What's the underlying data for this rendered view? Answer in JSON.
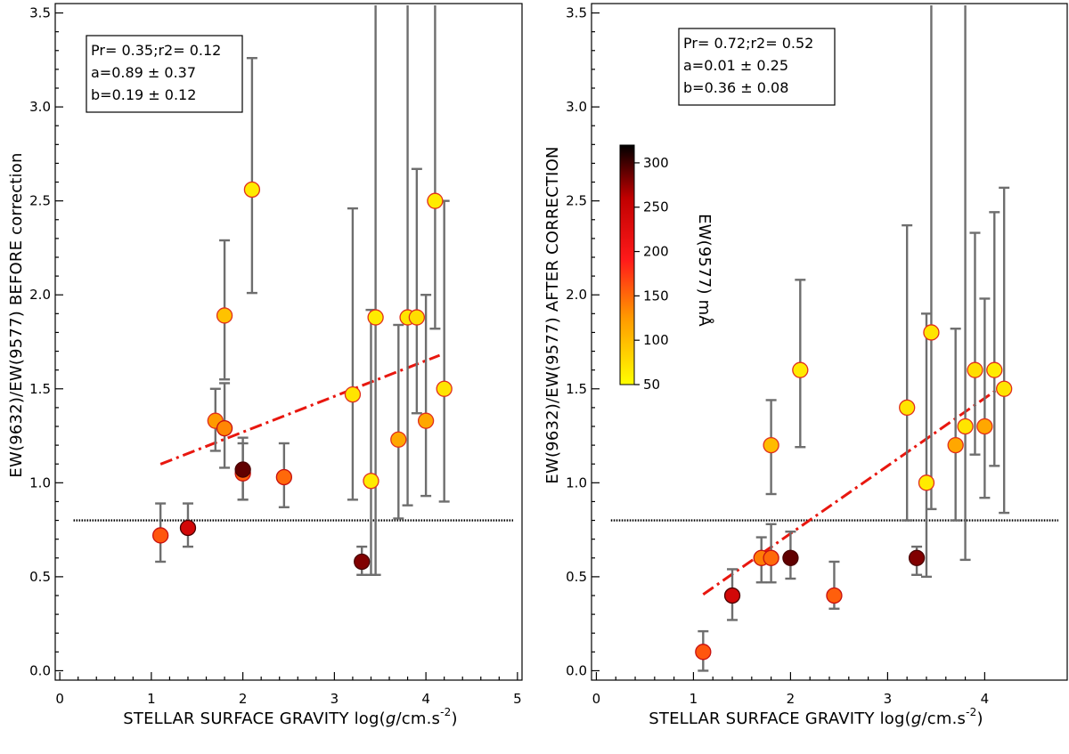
{
  "chart_data": [
    {
      "id": "left",
      "type": "scatter",
      "xlabel_prefix": "STELLAR SURFACE GRAVITY log(",
      "xlabel_italic": "g",
      "xlabel_suffix": "/cm.s",
      "xlabel_sup": "-2",
      "xlabel_close": ")",
      "ylabel": "EW(9632)/EW(9577) BEFORE correction",
      "xlim": [
        -0.05,
        5.05
      ],
      "ylim": [
        -0.05,
        3.55
      ],
      "xticks": [
        0,
        1,
        2,
        3,
        4,
        5
      ],
      "xtick_labels": [
        "0",
        "1",
        "2",
        "3",
        "4",
        "5"
      ],
      "yticks": [
        0.0,
        0.5,
        1.0,
        1.5,
        2.0,
        2.5,
        3.0,
        3.5
      ],
      "ytick_labels": [
        "0.0",
        "0.5",
        "1.0",
        "1.5",
        "2.0",
        "2.5",
        "3.0",
        "3.5"
      ],
      "stats": [
        "Pr= 0.35;r2= 0.12",
        "a=0.89 ± 0.37",
        "b=0.19 ± 0.12"
      ],
      "fit_line": {
        "a": 0.89,
        "b": 0.19,
        "x_range": [
          1.1,
          4.15
        ]
      },
      "reference_y": 0.8,
      "points": [
        {
          "x": 1.1,
          "y": 0.72,
          "lo": 0.58,
          "hi": 0.89,
          "ew": 160
        },
        {
          "x": 1.4,
          "y": 0.76,
          "lo": 0.66,
          "hi": 0.89,
          "ew": 240
        },
        {
          "x": 1.7,
          "y": 1.33,
          "lo": 1.17,
          "hi": 1.5,
          "ew": 125
        },
        {
          "x": 1.8,
          "y": 1.29,
          "lo": 1.08,
          "hi": 1.53,
          "ew": 135
        },
        {
          "x": 1.8,
          "y": 1.89,
          "lo": 1.55,
          "hi": 2.29,
          "ew": 95
        },
        {
          "x": 2.0,
          "y": 1.05,
          "lo": 0.91,
          "hi": 1.21,
          "ew": 155
        },
        {
          "x": 2.0,
          "y": 1.07,
          "lo": 0.91,
          "hi": 1.24,
          "ew": 290
        },
        {
          "x": 2.1,
          "y": 2.56,
          "lo": 2.01,
          "hi": 3.26,
          "ew": 65
        },
        {
          "x": 2.45,
          "y": 1.03,
          "lo": 0.87,
          "hi": 1.21,
          "ew": 150
        },
        {
          "x": 3.2,
          "y": 1.47,
          "lo": 0.91,
          "hi": 2.46,
          "ew": 70
        },
        {
          "x": 3.3,
          "y": 0.58,
          "lo": 0.51,
          "hi": 0.66,
          "ew": 280
        },
        {
          "x": 3.4,
          "y": 1.01,
          "lo": 0.51,
          "hi": 1.92,
          "ew": 65
        },
        {
          "x": 3.45,
          "y": 1.88,
          "lo": 0.51,
          "hi": 3.55,
          "ew": 65
        },
        {
          "x": 3.7,
          "y": 1.23,
          "lo": 0.81,
          "hi": 1.84,
          "ew": 115
        },
        {
          "x": 3.8,
          "y": 1.88,
          "lo": 0.88,
          "hi": 3.55,
          "ew": 70
        },
        {
          "x": 3.9,
          "y": 1.88,
          "lo": 1.37,
          "hi": 2.67,
          "ew": 75
        },
        {
          "x": 4.0,
          "y": 1.33,
          "lo": 0.93,
          "hi": 2.0,
          "ew": 115
        },
        {
          "x": 4.1,
          "y": 2.5,
          "lo": 1.82,
          "hi": 3.55,
          "ew": 65
        },
        {
          "x": 4.2,
          "y": 1.5,
          "lo": 0.9,
          "hi": 2.5,
          "ew": 70
        }
      ]
    },
    {
      "id": "right",
      "type": "scatter",
      "xlabel_prefix": "STELLAR SURFACE GRAVITY log(",
      "xlabel_italic": "g",
      "xlabel_suffix": "/cm.s",
      "xlabel_sup": "-2",
      "xlabel_close": ")",
      "ylabel": "EW(9632)/EW(9577) AFTER CORRECTION",
      "xlim": [
        -0.05,
        4.85
      ],
      "ylim": [
        -0.05,
        3.55
      ],
      "xticks": [
        0,
        1,
        2,
        3,
        4
      ],
      "xtick_labels": [
        "0",
        "1",
        "2",
        "3",
        "4"
      ],
      "yticks": [
        0.0,
        0.5,
        1.0,
        1.5,
        2.0,
        2.5,
        3.0,
        3.5
      ],
      "ytick_labels": [
        "0.0",
        "0.5",
        "1.0",
        "1.5",
        "2.0",
        "2.5",
        "3.0",
        "3.5"
      ],
      "stats": [
        "Pr= 0.72;r2= 0.52",
        "a=0.01 ± 0.25",
        "b=0.36 ± 0.08"
      ],
      "fit_line": {
        "a": 0.01,
        "b": 0.36,
        "x_range": [
          1.1,
          4.15
        ]
      },
      "reference_y": 0.8,
      "points": [
        {
          "x": 1.1,
          "y": 0.1,
          "lo": 0.0,
          "hi": 0.21,
          "ew": 160
        },
        {
          "x": 1.4,
          "y": 0.4,
          "lo": 0.27,
          "hi": 0.54,
          "ew": 240
        },
        {
          "x": 1.7,
          "y": 0.6,
          "lo": 0.47,
          "hi": 0.71,
          "ew": 140
        },
        {
          "x": 1.8,
          "y": 0.6,
          "lo": 0.47,
          "hi": 0.78,
          "ew": 150
        },
        {
          "x": 1.8,
          "y": 1.2,
          "lo": 0.94,
          "hi": 1.44,
          "ew": 100
        },
        {
          "x": 2.0,
          "y": 0.6,
          "lo": 0.49,
          "hi": 0.74,
          "ew": 290
        },
        {
          "x": 2.1,
          "y": 1.6,
          "lo": 1.19,
          "hi": 2.08,
          "ew": 65
        },
        {
          "x": 2.45,
          "y": 0.4,
          "lo": 0.33,
          "hi": 0.58,
          "ew": 155
        },
        {
          "x": 3.2,
          "y": 1.4,
          "lo": 0.8,
          "hi": 2.37,
          "ew": 70
        },
        {
          "x": 3.3,
          "y": 0.6,
          "lo": 0.51,
          "hi": 0.66,
          "ew": 280
        },
        {
          "x": 3.4,
          "y": 1.0,
          "lo": 0.5,
          "hi": 1.9,
          "ew": 65
        },
        {
          "x": 3.45,
          "y": 1.8,
          "lo": 0.86,
          "hi": 3.55,
          "ew": 70
        },
        {
          "x": 3.7,
          "y": 1.2,
          "lo": 0.8,
          "hi": 1.82,
          "ew": 115
        },
        {
          "x": 3.8,
          "y": 1.3,
          "lo": 0.59,
          "hi": 3.55,
          "ew": 70
        },
        {
          "x": 3.9,
          "y": 1.6,
          "lo": 1.15,
          "hi": 2.33,
          "ew": 75
        },
        {
          "x": 4.0,
          "y": 1.3,
          "lo": 0.92,
          "hi": 1.98,
          "ew": 115
        },
        {
          "x": 4.1,
          "y": 1.6,
          "lo": 1.09,
          "hi": 2.44,
          "ew": 65
        },
        {
          "x": 4.2,
          "y": 1.5,
          "lo": 0.84,
          "hi": 2.57,
          "ew": 70
        }
      ]
    }
  ],
  "colorbar": {
    "label": "EW(9577) mÅ",
    "range": [
      50,
      320
    ],
    "ticks": [
      50,
      100,
      150,
      200,
      250,
      300
    ],
    "tick_labels": [
      "50",
      "100",
      "150",
      "200",
      "250",
      "300"
    ],
    "colors": [
      "#ffff00",
      "#ff9900",
      "#ff1a1a",
      "#c00000",
      "#000000"
    ]
  }
}
